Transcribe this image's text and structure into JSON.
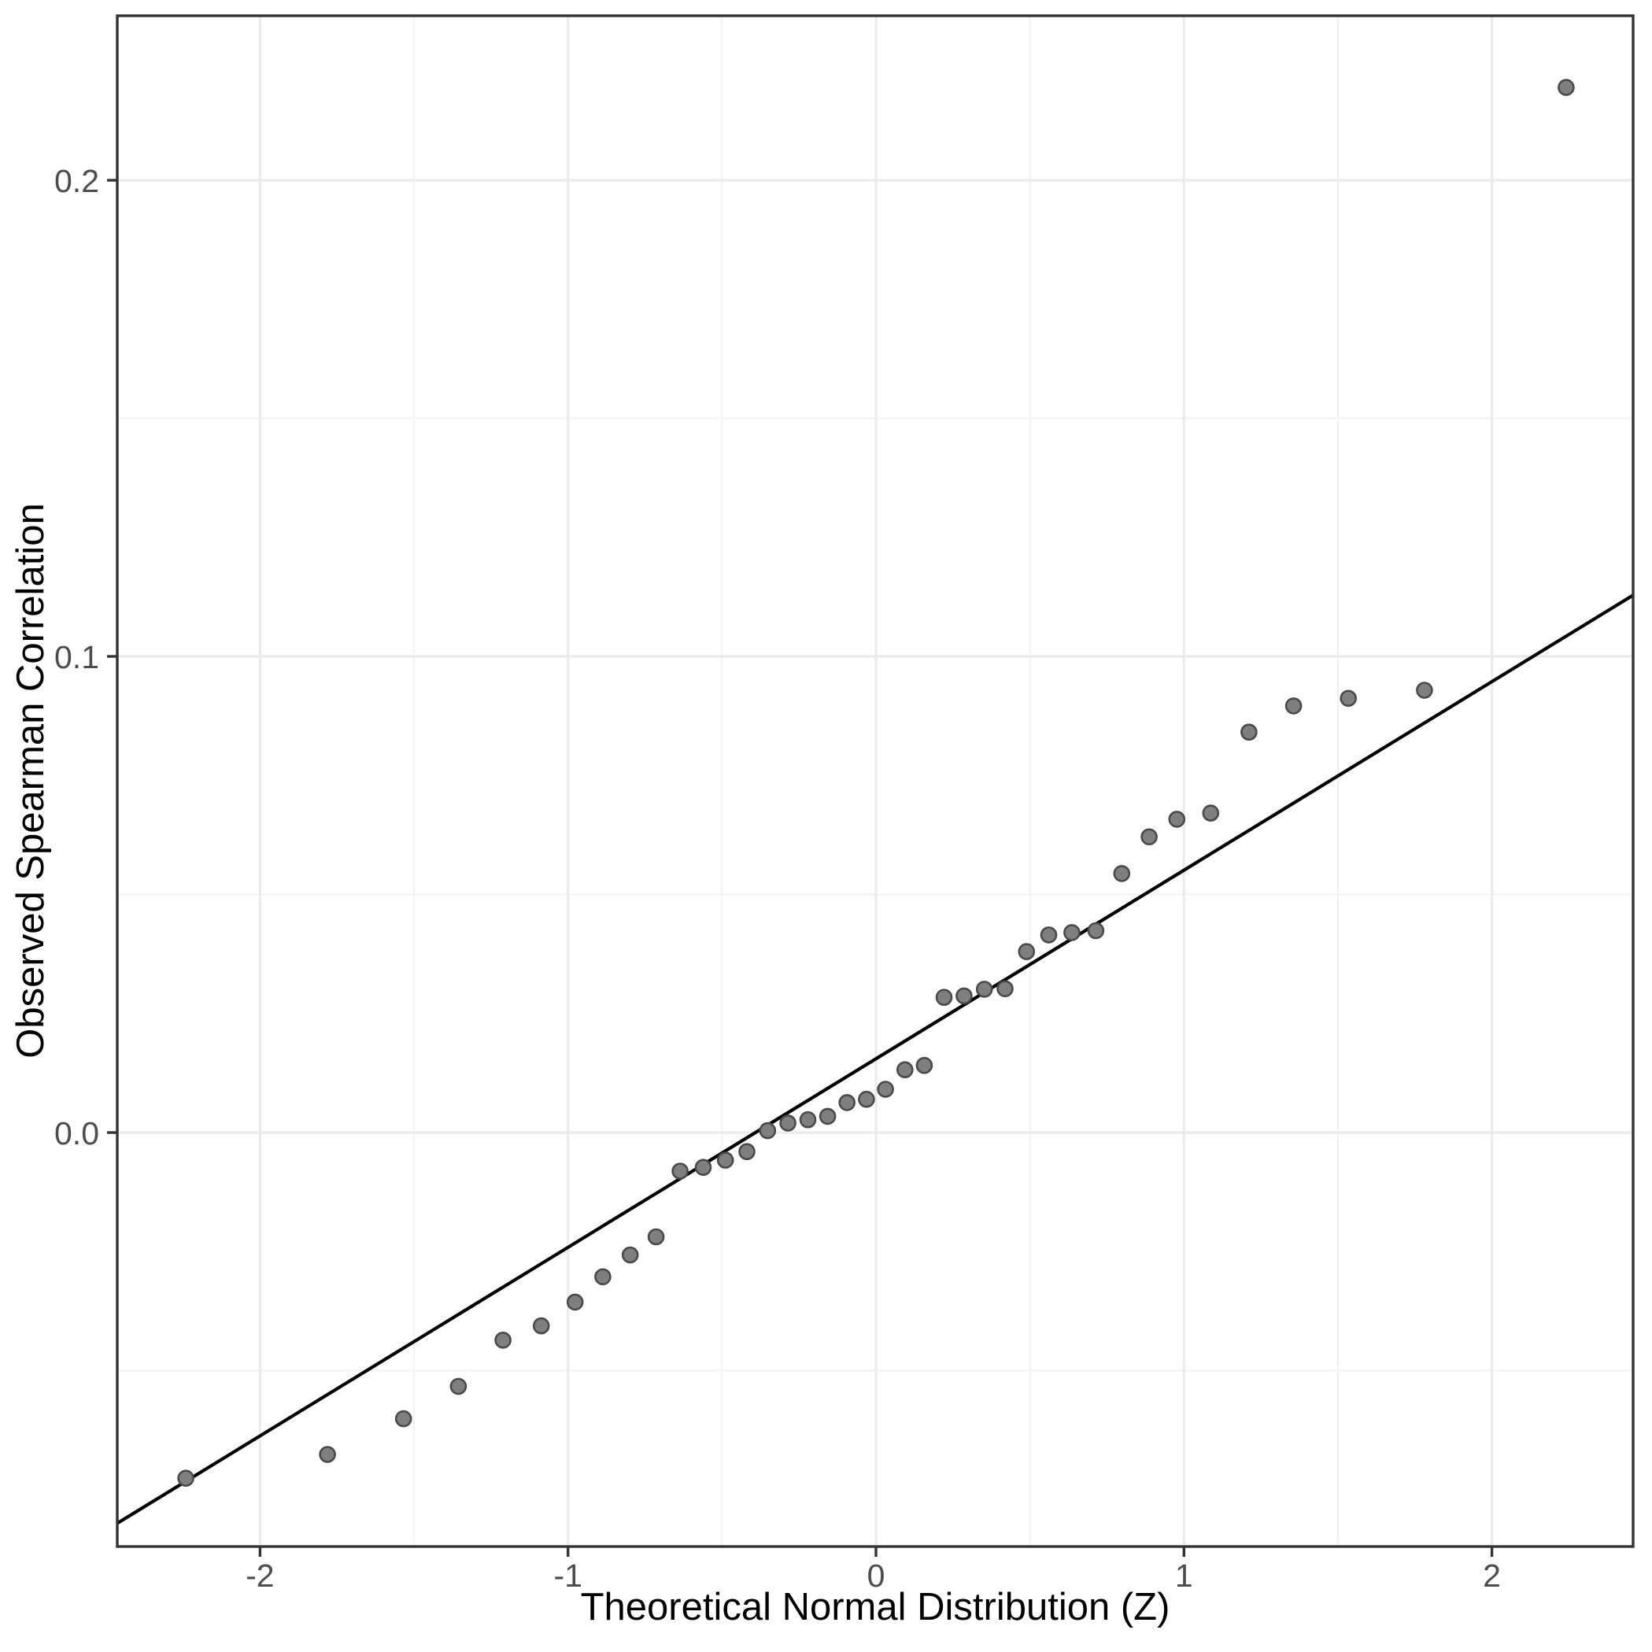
{
  "chart_data": {
    "type": "scatter",
    "title": "",
    "xlabel": "Theoretical Normal Distribution (Z)",
    "ylabel": "Observed Spearman Correlation",
    "xlim": [
      -2.4636,
      2.4585
    ],
    "ylim": [
      -0.08694,
      0.23455
    ],
    "grid": true,
    "legend_position": "none",
    "x_major_ticks": [
      {
        "value": -2,
        "label": "-2"
      },
      {
        "value": -1,
        "label": "-1"
      },
      {
        "value": 0,
        "label": "0"
      },
      {
        "value": 1,
        "label": "1"
      },
      {
        "value": 2,
        "label": "2"
      }
    ],
    "y_major_ticks": [
      {
        "value": 0.0,
        "label": "0.0"
      },
      {
        "value": 0.1,
        "label": "0.1"
      },
      {
        "value": 0.2,
        "label": "0.2"
      }
    ],
    "x_minor_ticks": [
      -1.5,
      -0.5,
      0.5,
      1.5
    ],
    "y_minor_ticks": [
      -0.05,
      0.05,
      0.15
    ],
    "reference_line": {
      "slope": 0.0396,
      "intercept": 0.0155
    },
    "series": [
      {
        "name": "qq-points",
        "points": [
          [
            -2.241,
            -0.0726
          ],
          [
            -1.781,
            -0.0676
          ],
          [
            -1.534,
            -0.0601
          ],
          [
            -1.356,
            -0.0533
          ],
          [
            -1.211,
            -0.0436
          ],
          [
            -1.087,
            -0.0406
          ],
          [
            -0.977,
            -0.0356
          ],
          [
            -0.887,
            -0.0303
          ],
          [
            -0.798,
            -0.0257
          ],
          [
            -0.714,
            -0.0219
          ],
          [
            -0.636,
            -0.0081
          ],
          [
            -0.561,
            -0.0073
          ],
          [
            -0.489,
            -0.0058
          ],
          [
            -0.419,
            -0.004
          ],
          [
            -0.352,
            0.0004
          ],
          [
            -0.286,
            0.002
          ],
          [
            -0.221,
            0.0027
          ],
          [
            -0.157,
            0.0034
          ],
          [
            -0.094,
            0.0063
          ],
          [
            -0.031,
            0.007
          ],
          [
            0.031,
            0.0091
          ],
          [
            0.094,
            0.0132
          ],
          [
            0.157,
            0.0141
          ],
          [
            0.221,
            0.0284
          ],
          [
            0.286,
            0.0287
          ],
          [
            0.352,
            0.0301
          ],
          [
            0.419,
            0.0302
          ],
          [
            0.489,
            0.038
          ],
          [
            0.561,
            0.0415
          ],
          [
            0.636,
            0.042
          ],
          [
            0.714,
            0.0424
          ],
          [
            0.798,
            0.0544
          ],
          [
            0.887,
            0.0621
          ],
          [
            0.977,
            0.0658
          ],
          [
            1.087,
            0.0671
          ],
          [
            1.211,
            0.0841
          ],
          [
            1.356,
            0.0896
          ],
          [
            1.534,
            0.0912
          ],
          [
            1.781,
            0.0929
          ],
          [
            2.241,
            0.2195
          ]
        ]
      }
    ],
    "point_count": 40
  },
  "colors": {
    "background": "#ffffff",
    "panel_background": "#ffffff",
    "grid_major": "#ebebeb",
    "grid_minor": "#f2f2f2",
    "panel_border": "#333333",
    "tick_mark": "#333333",
    "tick_label": "#4d4d4d",
    "axis_title": "#000000",
    "point_fill": "#7f7f7f",
    "point_stroke": "#4a4a4a",
    "reference_line": "#000000"
  }
}
